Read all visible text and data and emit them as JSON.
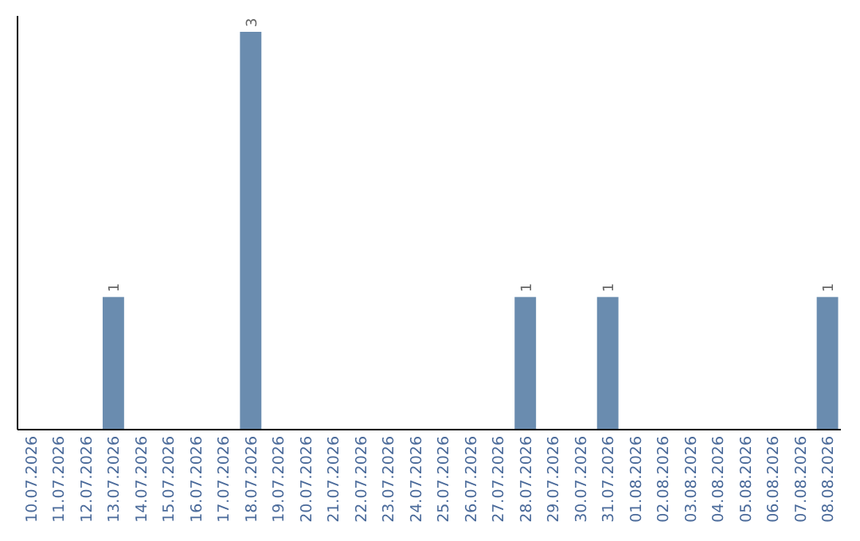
{
  "chart_data": {
    "type": "bar",
    "categories": [
      "10.07.2026",
      "11.07.2026",
      "12.07.2026",
      "13.07.2026",
      "14.07.2026",
      "15.07.2026",
      "16.07.2026",
      "17.07.2026",
      "18.07.2026",
      "19.07.2026",
      "20.07.2026",
      "21.07.2026",
      "22.07.2026",
      "23.07.2026",
      "24.07.2026",
      "25.07.2026",
      "26.07.2026",
      "27.07.2026",
      "28.07.2026",
      "29.07.2026",
      "30.07.2026",
      "31.07.2026",
      "01.08.2026",
      "02.08.2026",
      "03.08.2026",
      "04.08.2026",
      "05.08.2026",
      "06.08.2026",
      "07.08.2026",
      "08.08.2026"
    ],
    "values": [
      0,
      0,
      0,
      1,
      0,
      0,
      0,
      0,
      3,
      0,
      0,
      0,
      0,
      0,
      0,
      0,
      0,
      0,
      1,
      0,
      0,
      1,
      0,
      0,
      0,
      0,
      0,
      0,
      0,
      1
    ],
    "value_labels": [
      null,
      null,
      null,
      "1",
      null,
      null,
      null,
      null,
      "3",
      null,
      null,
      null,
      null,
      null,
      null,
      null,
      null,
      null,
      "1",
      null,
      null,
      "1",
      null,
      null,
      null,
      null,
      null,
      null,
      null,
      "1"
    ],
    "color": "#6a8caf",
    "grid": false
  }
}
